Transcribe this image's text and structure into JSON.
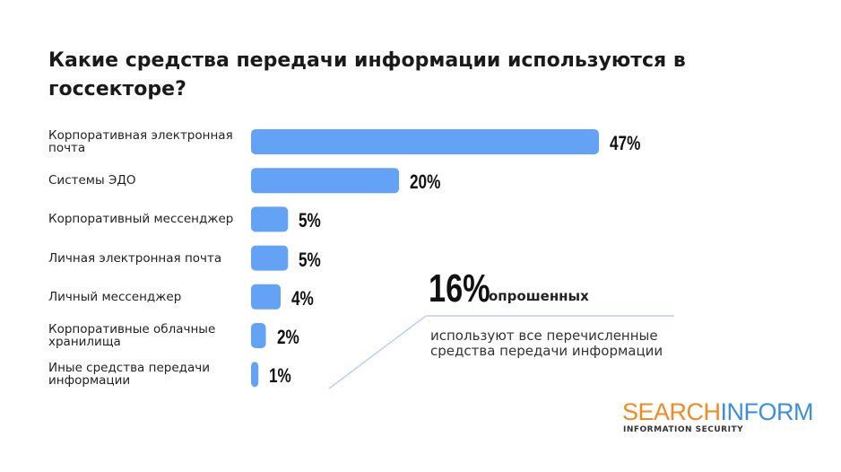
{
  "chart_data": {
    "type": "bar",
    "orientation": "horizontal",
    "title": "Какие средства передачи информации используются в госсекторе?",
    "categories": [
      "Корпоративная электронная почта",
      "Системы ЭДО",
      "Корпоративный мессенджер",
      "Личная электронная почта",
      "Личный мессенджер",
      "Корпоративные облачные хранилища",
      "Иные средства передачи информации"
    ],
    "values": [
      47,
      20,
      5,
      5,
      4,
      2,
      1
    ],
    "value_labels": [
      "47%",
      "20%",
      "5%",
      "5%",
      "4%",
      "2%",
      "1%"
    ],
    "color": "#64a2f6",
    "callout": {
      "value": "16%",
      "text": "опрошенных",
      "subtext": "используют все перечисленные средства передачи информации"
    },
    "logo": {
      "parts": [
        "SEARCH",
        "INFORM"
      ],
      "tagline": "INFORMATION SECURITY"
    }
  }
}
